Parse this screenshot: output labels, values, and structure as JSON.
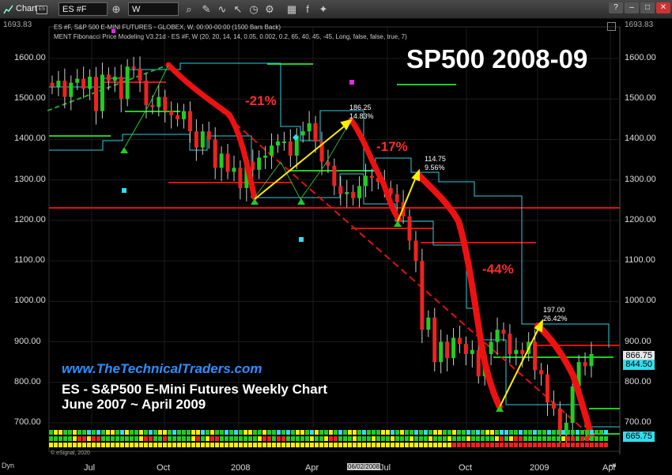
{
  "toolbar": {
    "app_label": "Chart",
    "symbol_value": "ES #F",
    "interval_value": "W",
    "icons": [
      "link-icon",
      "crosshair-icon",
      "search-icon",
      "draw-icon",
      "cursor-icon",
      "settings-icon",
      "grid-icon",
      "layout-icon",
      "facebook-icon",
      "twitter-icon"
    ]
  },
  "legend": {
    "line1": "ES #F, S&P 500 E-MINI FUTURES - GLOBEX, W, 00:00-00:00 (1500 Bars Back)",
    "line2": "MENT Fibonacci Price Modeling V3.21d - ES #F, W (20, 20, 14, 14, 0.05, 0.002, 0.2, 65, 40, 45, -45, Long, false, false, true, 7)"
  },
  "title": "SP500 2008-09",
  "website": "www.TheTechnicalTraders.com",
  "subtitle_line1": "ES - S&P500 E-Mini Futures Weekly Chart",
  "subtitle_line2": "June 2007 ~ April 2009",
  "copyright": "© eSignal, 2020",
  "top_value": "1693.83",
  "crosshair_date": "06/02/2008",
  "dyn_label": "Dyn",
  "annotations": {
    "drop1": "-21%",
    "drop2": "-17%",
    "drop3": "-44%",
    "rally1_pts": "186.25",
    "rally1_pct": "14.83%",
    "rally2_pts": "114.75",
    "rally2_pct": "9.56%",
    "rally3_pts": "197.00",
    "rally3_pct": "26.42%"
  },
  "price_tags": {
    "upper": "866.75",
    "upper_color": "#e8e8e8",
    "current": "844.50",
    "current_color": "#33ddee",
    "lower": "665.75",
    "lower_color": "#33ddee"
  },
  "chart_data": {
    "type": "candlestick",
    "y_ticks": [
      "1600.00",
      "1500.00",
      "1400.00",
      "1300.00",
      "1200.00",
      "1100.00",
      "1000.00",
      "900.00",
      "800.00",
      "700.00"
    ],
    "x_ticks": [
      "Jul",
      "Oct",
      "2008",
      "Apr",
      "Jul",
      "Oct",
      "2009",
      "Apr"
    ],
    "ylim": [
      650,
      1700
    ],
    "price_path": [
      1530,
      1545,
      1505,
      1540,
      1550,
      1525,
      1555,
      1470,
      1560,
      1545,
      1555,
      1500,
      1580,
      1575,
      1545,
      1485,
      1480,
      1505,
      1470,
      1460,
      1450,
      1470,
      1420,
      1380,
      1420,
      1400,
      1330,
      1365,
      1320,
      1330,
      1280,
      1345,
      1325,
      1355,
      1360,
      1385,
      1395,
      1395,
      1360,
      1410,
      1420,
      1440,
      1395,
      1345,
      1335,
      1285,
      1265,
      1270,
      1255,
      1285,
      1310,
      1305,
      1295,
      1280,
      1265,
      1245,
      1210,
      1150,
      1100,
      930,
      960,
      850,
      900,
      860,
      910,
      895,
      870,
      880,
      815,
      870,
      900,
      930,
      920,
      870,
      880,
      870,
      900,
      830,
      820,
      750,
      735,
      670,
      700,
      790,
      850,
      840,
      870
    ],
    "colors": {
      "up": "#22cc22",
      "down": "#ee2222",
      "accent": "#ff2a2a",
      "fib": "#33ccdd"
    }
  }
}
